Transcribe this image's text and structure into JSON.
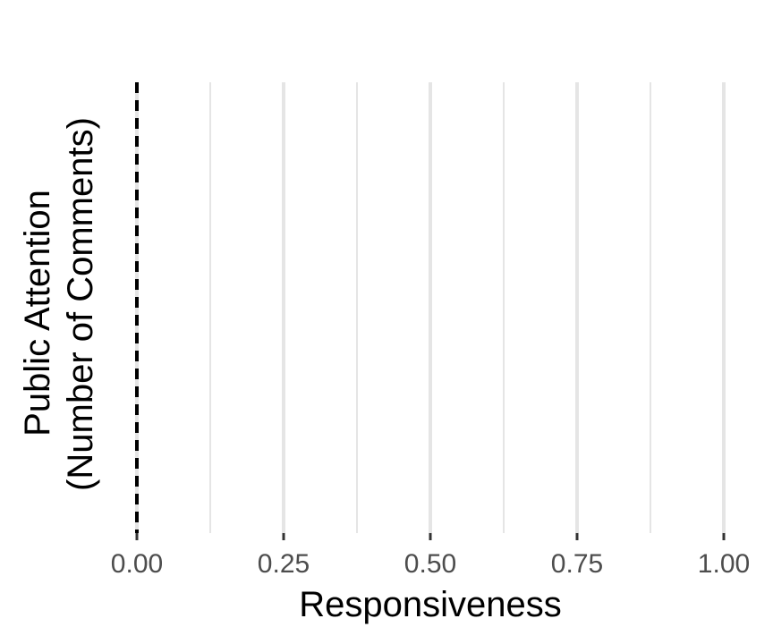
{
  "chart_data": {
    "type": "scatter",
    "title": "",
    "xlabel": "Responsiveness",
    "ylabel_lines": [
      "Public Attention",
      "(Number of Comments)"
    ],
    "xlim": [
      0,
      1
    ],
    "x_ticks": [
      0,
      0.25,
      0.5,
      0.75,
      1
    ],
    "x_tick_labels": [
      "0.00",
      "0.25",
      "0.50",
      "0.75",
      "1.00"
    ],
    "x_minor_gridlines": [
      0.125,
      0.375,
      0.625,
      0.875
    ],
    "y_ticks": [],
    "grid": true,
    "reference_line": {
      "x": 0,
      "style": "dashed",
      "color": "#000000"
    },
    "points": [],
    "legend": "none",
    "colors": {
      "grid": "#e5e5e5",
      "tick_text": "#4d4d4d",
      "axis_title": "#000000",
      "reference_line": "#000000",
      "ticks": "#333333"
    }
  }
}
